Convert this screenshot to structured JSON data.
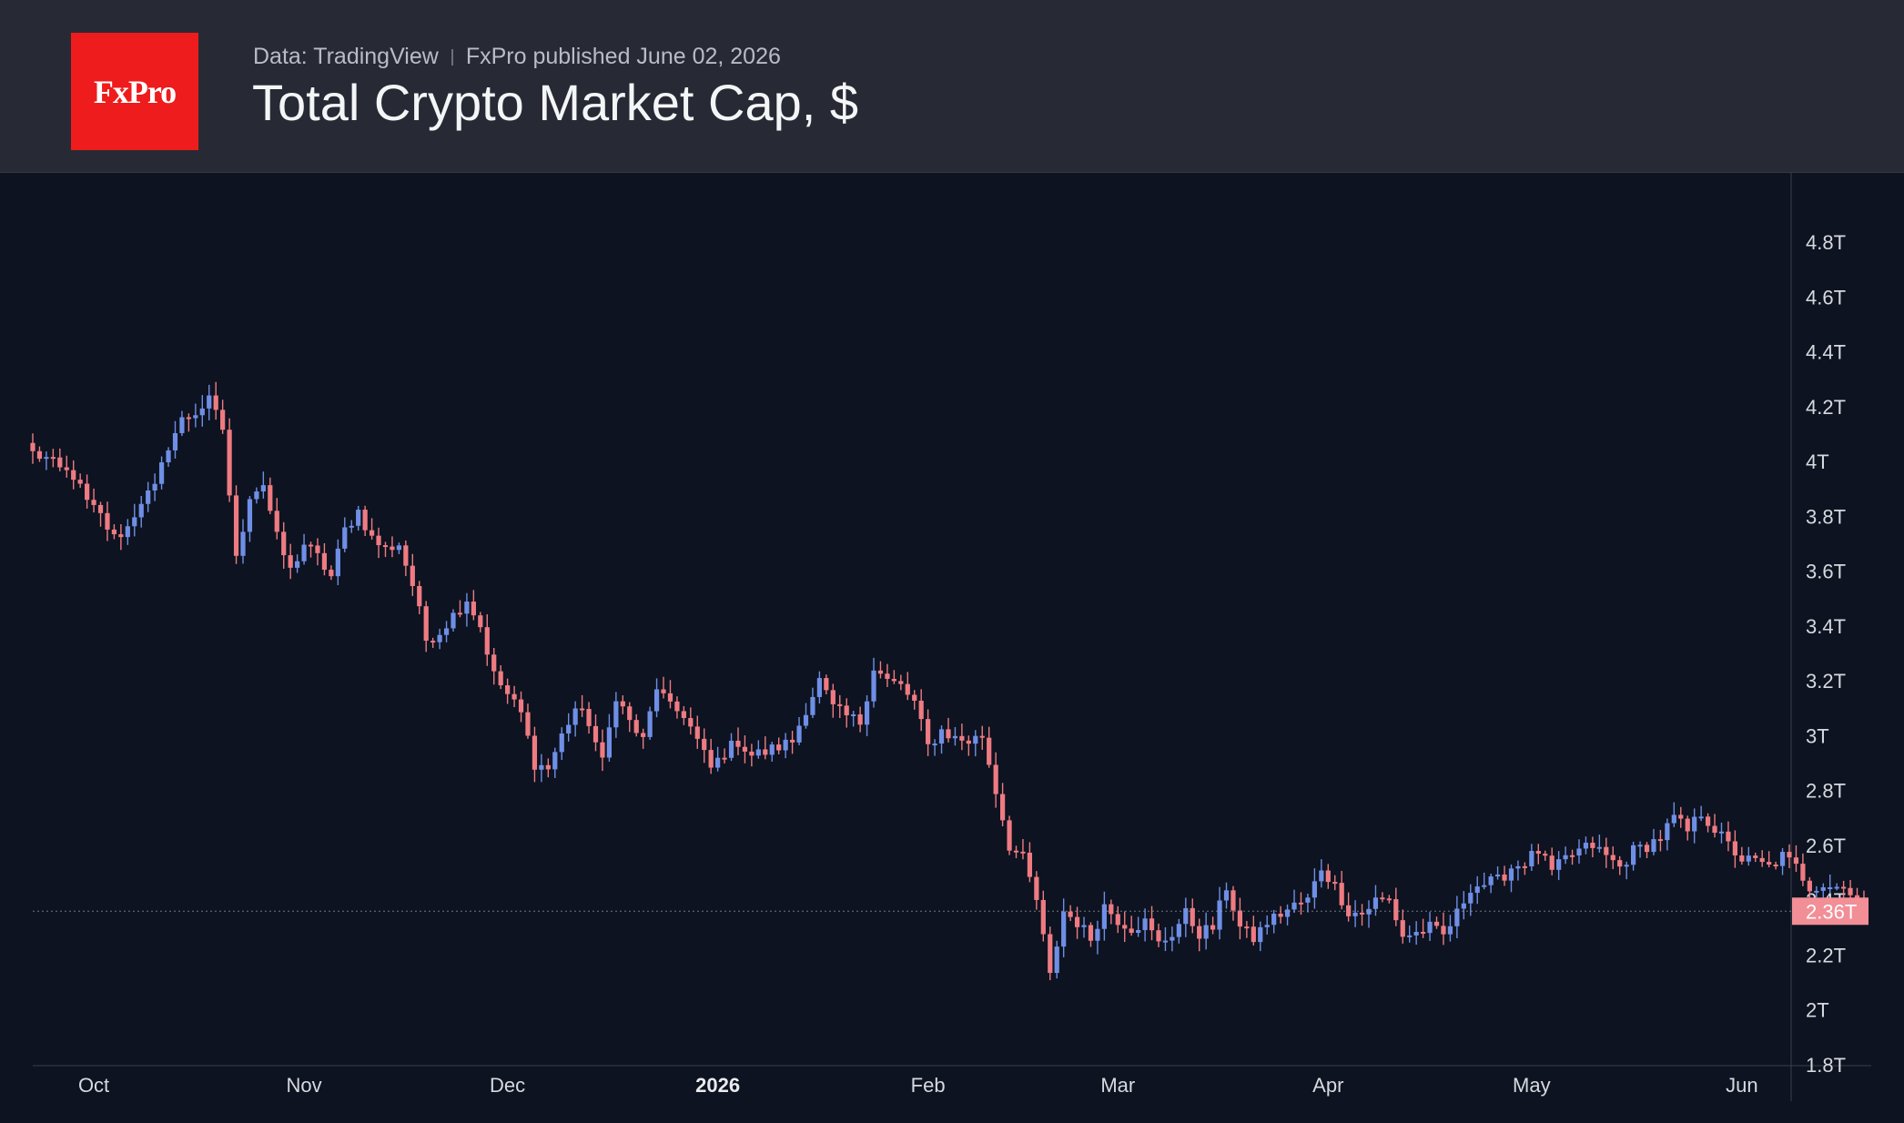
{
  "header": {
    "logo_text": "FxPro",
    "source": "Data: TradingView",
    "publisher": "FxPro published June 02, 2026",
    "title": "Total Crypto Market Cap, $"
  },
  "colors": {
    "background": "#0d1320",
    "header_background": "#272a34",
    "logo": "#ee1c1c",
    "up_candle": "#6f8fe6",
    "down_candle": "#ef7b82",
    "last_price_label": "#f28e96"
  },
  "chart_data": {
    "type": "candlestick",
    "title": "Total Crypto Market Cap, $",
    "xlabel": "",
    "ylabel": "",
    "ylim": [
      1.8,
      4.9
    ],
    "y_unit": "T",
    "y_ticks": [
      "4.8T",
      "4.6T",
      "4.4T",
      "4.2T",
      "4T",
      "3.8T",
      "3.6T",
      "3.4T",
      "3.2T",
      "3T",
      "2.8T",
      "2.6T",
      "2.4T",
      "2.2T",
      "2T",
      "1.8T"
    ],
    "y_tick_values": [
      4.8,
      4.6,
      4.4,
      4.2,
      4.0,
      3.8,
      3.6,
      3.4,
      3.2,
      3.0,
      2.8,
      2.6,
      2.4,
      2.2,
      2.0,
      1.8
    ],
    "x_range": [
      "2025-09-22",
      "2026-06-08"
    ],
    "x_ticks": [
      {
        "label": "Oct",
        "date": "2025-10-01",
        "bold": false
      },
      {
        "label": "Nov",
        "date": "2025-11-01",
        "bold": false
      },
      {
        "label": "Dec",
        "date": "2025-12-01",
        "bold": false
      },
      {
        "label": "2026",
        "date": "2026-01-01",
        "bold": true
      },
      {
        "label": "Feb",
        "date": "2026-02-01",
        "bold": false
      },
      {
        "label": "Mar",
        "date": "2026-03-01",
        "bold": false
      },
      {
        "label": "Apr",
        "date": "2026-04-01",
        "bold": false
      },
      {
        "label": "May",
        "date": "2026-05-01",
        "bold": false
      },
      {
        "label": "Jun",
        "date": "2026-06-01",
        "bold": false
      }
    ],
    "last_value": 2.36,
    "last_label": "2.36T",
    "grid": false,
    "start_date": "2025-09-22",
    "close_path": [
      [
        0,
        4.03
      ],
      [
        2,
        4.01
      ],
      [
        4,
        3.97
      ],
      [
        6,
        3.95
      ],
      [
        8,
        3.85
      ],
      [
        10,
        3.8
      ],
      [
        12,
        3.72
      ],
      [
        14,
        3.76
      ],
      [
        16,
        3.86
      ],
      [
        18,
        3.9
      ],
      [
        20,
        4.06
      ],
      [
        22,
        4.15
      ],
      [
        24,
        4.18
      ],
      [
        26,
        4.22
      ],
      [
        28,
        4.12
      ],
      [
        30,
        3.64
      ],
      [
        32,
        3.88
      ],
      [
        34,
        3.92
      ],
      [
        36,
        3.72
      ],
      [
        38,
        3.6
      ],
      [
        40,
        3.7
      ],
      [
        42,
        3.65
      ],
      [
        44,
        3.58
      ],
      [
        46,
        3.75
      ],
      [
        48,
        3.82
      ],
      [
        50,
        3.72
      ],
      [
        52,
        3.68
      ],
      [
        54,
        3.7
      ],
      [
        56,
        3.55
      ],
      [
        58,
        3.35
      ],
      [
        60,
        3.38
      ],
      [
        62,
        3.44
      ],
      [
        64,
        3.5
      ],
      [
        66,
        3.4
      ],
      [
        68,
        3.22
      ],
      [
        70,
        3.15
      ],
      [
        72,
        3.08
      ],
      [
        74,
        2.9
      ],
      [
        76,
        2.88
      ],
      [
        78,
        3.0
      ],
      [
        80,
        3.1
      ],
      [
        82,
        3.05
      ],
      [
        84,
        2.9
      ],
      [
        86,
        3.15
      ],
      [
        88,
        3.05
      ],
      [
        90,
        2.98
      ],
      [
        92,
        3.18
      ],
      [
        94,
        3.1
      ],
      [
        96,
        3.08
      ],
      [
        98,
        2.98
      ],
      [
        100,
        2.88
      ],
      [
        102,
        2.94
      ],
      [
        104,
        2.98
      ],
      [
        106,
        2.93
      ],
      [
        108,
        2.94
      ],
      [
        110,
        2.96
      ],
      [
        112,
        2.98
      ],
      [
        114,
        3.1
      ],
      [
        116,
        3.2
      ],
      [
        118,
        3.1
      ],
      [
        120,
        3.07
      ],
      [
        122,
        3.05
      ],
      [
        124,
        3.25
      ],
      [
        126,
        3.2
      ],
      [
        128,
        3.18
      ],
      [
        130,
        3.12
      ],
      [
        132,
        2.96
      ],
      [
        134,
        3.02
      ],
      [
        136,
        2.99
      ],
      [
        138,
        2.98
      ],
      [
        140,
        3.0
      ],
      [
        142,
        2.8
      ],
      [
        144,
        2.6
      ],
      [
        146,
        2.55
      ],
      [
        148,
        2.4
      ],
      [
        150,
        2.12
      ],
      [
        152,
        2.36
      ],
      [
        154,
        2.32
      ],
      [
        156,
        2.26
      ],
      [
        158,
        2.38
      ],
      [
        160,
        2.33
      ],
      [
        162,
        2.3
      ],
      [
        164,
        2.32
      ],
      [
        166,
        2.24
      ],
      [
        168,
        2.28
      ],
      [
        170,
        2.35
      ],
      [
        172,
        2.28
      ],
      [
        174,
        2.3
      ],
      [
        176,
        2.45
      ],
      [
        178,
        2.3
      ],
      [
        180,
        2.26
      ],
      [
        182,
        2.32
      ],
      [
        184,
        2.35
      ],
      [
        186,
        2.38
      ],
      [
        188,
        2.4
      ],
      [
        190,
        2.52
      ],
      [
        192,
        2.45
      ],
      [
        194,
        2.36
      ],
      [
        196,
        2.35
      ],
      [
        198,
        2.4
      ],
      [
        200,
        2.4
      ],
      [
        202,
        2.27
      ],
      [
        204,
        2.28
      ],
      [
        206,
        2.3
      ],
      [
        208,
        2.27
      ],
      [
        210,
        2.35
      ],
      [
        212,
        2.45
      ],
      [
        214,
        2.46
      ],
      [
        216,
        2.47
      ],
      [
        218,
        2.52
      ],
      [
        220,
        2.54
      ],
      [
        222,
        2.58
      ],
      [
        224,
        2.5
      ],
      [
        226,
        2.55
      ],
      [
        228,
        2.58
      ],
      [
        230,
        2.6
      ],
      [
        232,
        2.56
      ],
      [
        234,
        2.52
      ],
      [
        236,
        2.58
      ],
      [
        238,
        2.6
      ],
      [
        240,
        2.63
      ],
      [
        242,
        2.7
      ],
      [
        244,
        2.65
      ],
      [
        246,
        2.72
      ],
      [
        248,
        2.66
      ],
      [
        250,
        2.6
      ],
      [
        252,
        2.55
      ],
      [
        254,
        2.54
      ],
      [
        256,
        2.52
      ],
      [
        258,
        2.56
      ],
      [
        260,
        2.52
      ],
      [
        262,
        2.45
      ],
      [
        264,
        2.46
      ],
      [
        266,
        2.45
      ],
      [
        268,
        2.44
      ],
      [
        270,
        2.36
      ]
    ],
    "series": [
      {
        "name": "",
        "description": "daily candles, blue = up, red = down; shape follows close_path"
      }
    ]
  }
}
